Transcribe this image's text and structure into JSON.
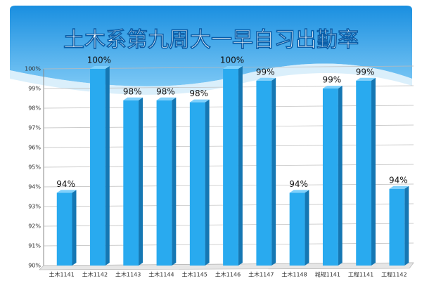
{
  "chart_data": {
    "type": "bar",
    "title": "土木系第九周大一早自习出勤率",
    "categories": [
      "土木1141",
      "土木1142",
      "土木1143",
      "土木1144",
      "土木1145",
      "土木1146",
      "土木1147",
      "土木1148",
      "城规1141",
      "工程1141",
      "工程1142"
    ],
    "values": [
      93.7,
      100,
      98.4,
      98.4,
      98.3,
      100,
      99.4,
      93.7,
      99.0,
      99.4,
      93.9
    ],
    "value_labels": [
      "94%",
      "100%",
      "98%",
      "98%",
      "98%",
      "100%",
      "99%",
      "94%",
      "99%",
      "99%",
      "94%"
    ],
    "color": "#29aaef",
    "ylim": [
      90,
      100
    ],
    "yticks": [
      {
        "value": 90,
        "label": "90%"
      },
      {
        "value": 91,
        "label": "91%"
      },
      {
        "value": 92,
        "label": "92%"
      },
      {
        "value": 93,
        "label": "93%"
      },
      {
        "value": 94,
        "label": "94%"
      },
      {
        "value": 95,
        "label": "95%"
      },
      {
        "value": 96,
        "label": "96%"
      },
      {
        "value": 97,
        "label": "97%"
      },
      {
        "value": 98,
        "label": "98%"
      },
      {
        "value": 99,
        "label": "99%"
      },
      {
        "value": 100,
        "label": "100%"
      }
    ],
    "grid": true
  }
}
